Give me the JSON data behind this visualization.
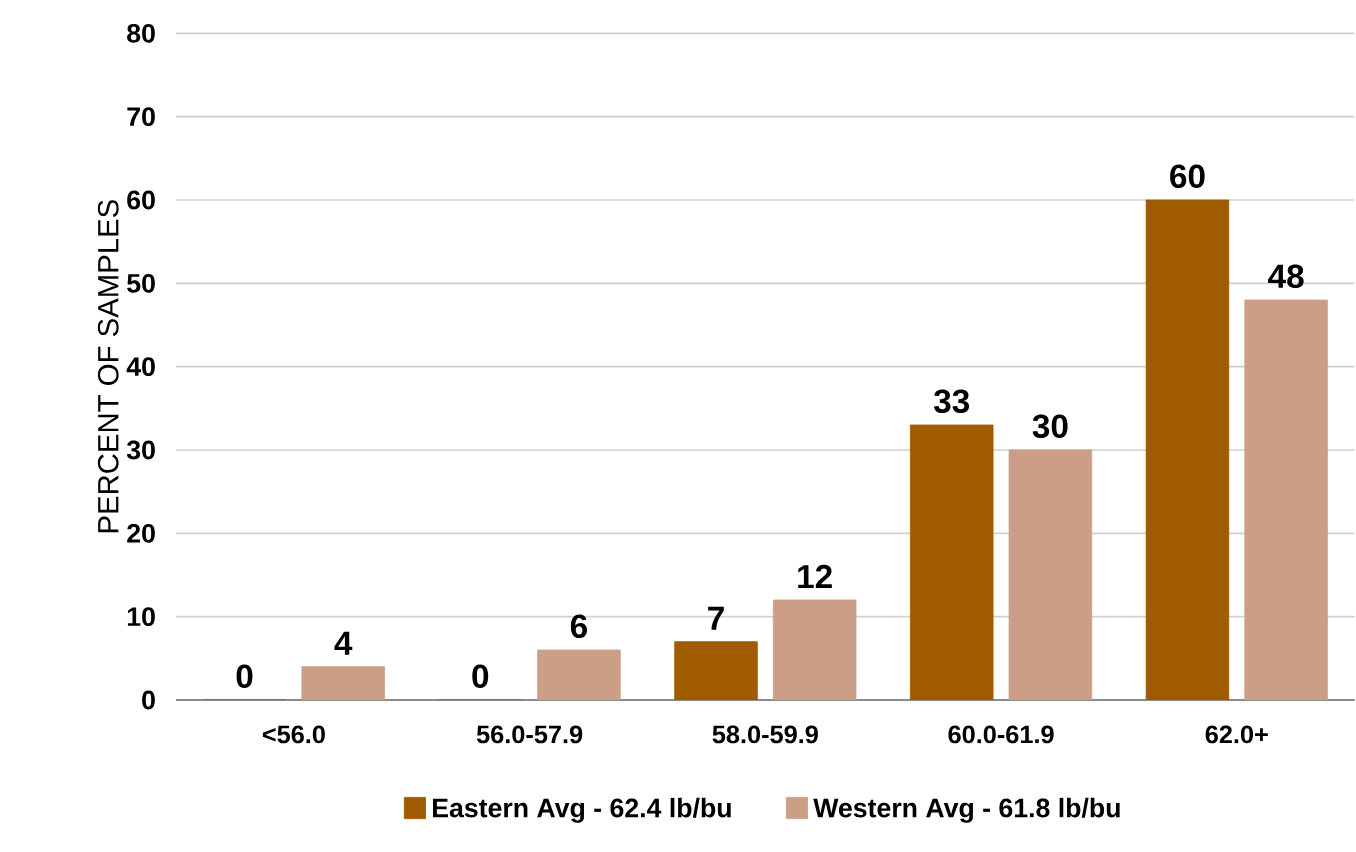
{
  "chart_data": {
    "type": "bar",
    "ylabel": "PERCENT OF SAMPLES",
    "categories": [
      "<56.0",
      "56.0-57.9",
      "58.0-59.9",
      "60.0-61.9",
      "62.0+"
    ],
    "series": [
      {
        "name": "Eastern Avg - 62.4 lb/bu",
        "color": "#a05a00",
        "values": [
          0,
          0,
          7,
          33,
          60
        ]
      },
      {
        "name": "Western Avg - 61.8 lb/bu",
        "color": "#cc9e85",
        "values": [
          4,
          6,
          12,
          30,
          48
        ]
      }
    ],
    "ylim": [
      0,
      80
    ],
    "yticks": [
      0,
      10,
      20,
      30,
      40,
      50,
      60,
      70,
      80
    ],
    "grid": "y",
    "legend": "bottom",
    "data_labels": true
  }
}
